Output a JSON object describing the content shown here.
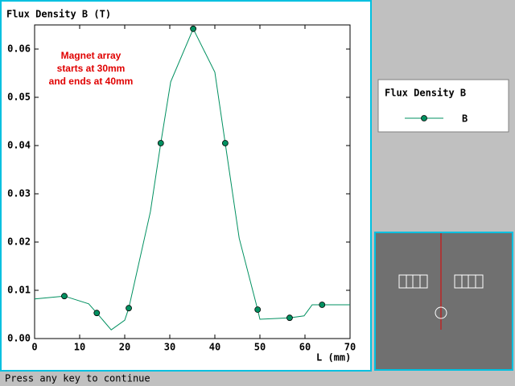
{
  "chart_data": {
    "type": "line",
    "title": "Flux Density B (T)",
    "x_label": "L (mm)",
    "legend_title": "Flux Density B",
    "annotation": [
      "Magnet array",
      "starts at 30mm",
      "and ends at 40mm"
    ],
    "x": [
      0,
      6.6,
      12,
      13.8,
      17,
      20,
      20.9,
      25.7,
      28,
      30.2,
      35.2,
      40,
      42.3,
      45.4,
      49.5,
      50,
      56.6,
      59.8,
      61.6,
      63.8,
      70
    ],
    "series": [
      {
        "name": "B",
        "color": "#009060",
        "values": [
          0.0082,
          0.0088,
          0.0072,
          0.0053,
          0.0018,
          0.0038,
          0.0063,
          0.0263,
          0.0405,
          0.0532,
          0.0642,
          0.0552,
          0.0405,
          0.0208,
          0.006,
          0.004,
          0.0043,
          0.0047,
          0.007,
          0.007,
          0.007
        ],
        "marker_points": [
          1,
          3,
          6,
          8,
          10,
          12,
          14,
          16,
          19
        ]
      }
    ],
    "xlim": [
      0,
      70
    ],
    "xticks": [
      0,
      10,
      20,
      30,
      40,
      50,
      60,
      70
    ],
    "ylim": [
      0,
      0.065
    ],
    "yticks": [
      {
        "value": 0,
        "label": "0.00"
      },
      {
        "value": 0.01,
        "label": "0.01"
      },
      {
        "value": 0.02,
        "label": "0.02"
      },
      {
        "value": 0.03,
        "label": "0.03"
      },
      {
        "value": 0.04,
        "label": "0.04"
      },
      {
        "value": 0.05,
        "label": "0.05"
      },
      {
        "value": 0.06,
        "label": "0.06"
      }
    ]
  },
  "status_bar": "Press any key to continue"
}
